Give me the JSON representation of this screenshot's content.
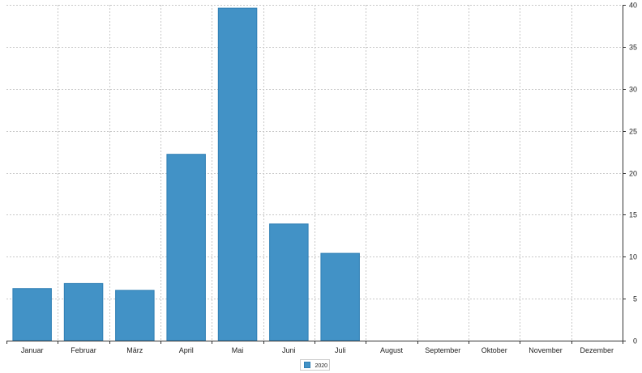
{
  "chart_data": {
    "type": "bar",
    "categories": [
      "Januar",
      "Februar",
      "März",
      "April",
      "Mai",
      "Juni",
      "Juli",
      "August",
      "September",
      "Oktober",
      "November",
      "Dezember"
    ],
    "series": [
      {
        "name": "2020",
        "values": [
          6.2,
          6.8,
          6.0,
          22.2,
          39.6,
          13.9,
          10.4,
          0,
          0,
          0,
          0,
          0
        ]
      }
    ],
    "title": "",
    "xlabel": "",
    "ylabel": "",
    "ylim": [
      0,
      40
    ],
    "yticks": [
      0,
      5,
      10,
      15,
      20,
      25,
      30,
      35,
      40
    ],
    "y_axis_side": "right",
    "grid": true,
    "legend": "bottom-center",
    "colors": {
      "bar_fill": "#4292c6",
      "bar_stroke": "#2f7fb5",
      "grid": "#c8c8c8",
      "axis": "#333333"
    }
  }
}
